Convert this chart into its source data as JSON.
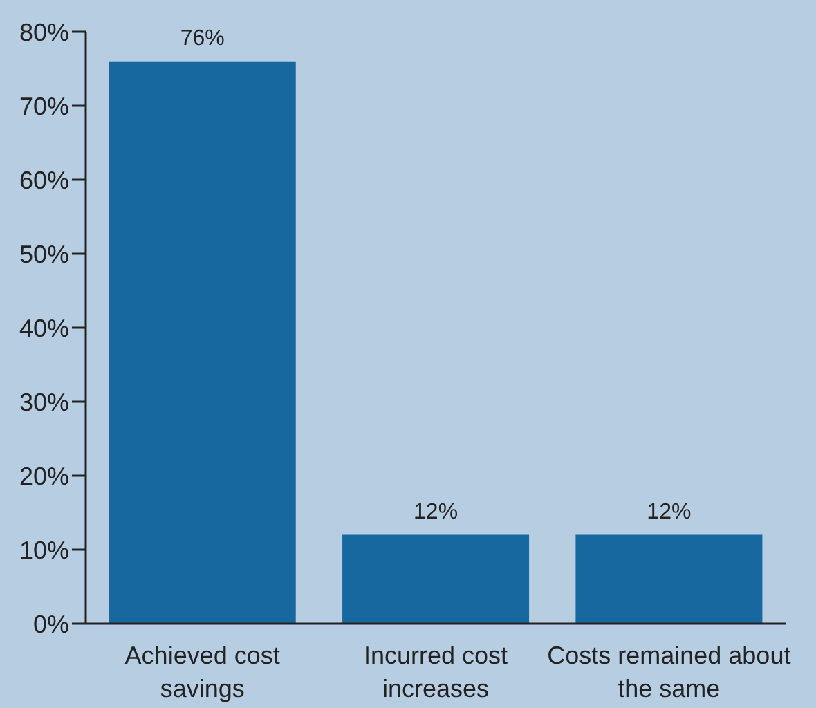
{
  "chart_data": {
    "type": "bar",
    "categories": [
      "Achieved cost savings",
      "Incurred cost increases",
      "Costs remained about the same"
    ],
    "values": [
      76,
      12,
      12
    ],
    "color": "#17689f",
    "value_labels": [
      "76%",
      "12%",
      "12%"
    ],
    "ylim": [
      0,
      80
    ],
    "yticks": [
      {
        "value": 0,
        "label": "0%"
      },
      {
        "value": 10,
        "label": "10%"
      },
      {
        "value": 20,
        "label": "20%"
      },
      {
        "value": 30,
        "label": "30%"
      },
      {
        "value": 40,
        "label": "40%"
      },
      {
        "value": 50,
        "label": "50%"
      },
      {
        "value": 60,
        "label": "60%"
      },
      {
        "value": 70,
        "label": "70%"
      },
      {
        "value": 80,
        "label": "80%"
      }
    ],
    "grid": false,
    "legend": false
  }
}
